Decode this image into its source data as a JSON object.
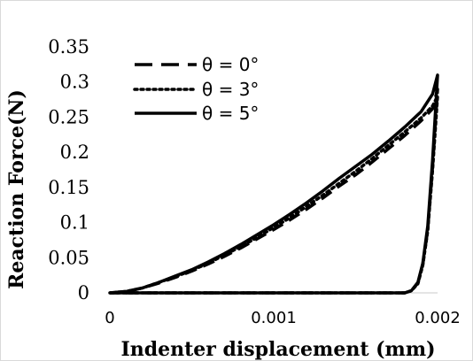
{
  "chart_data": {
    "type": "line",
    "title": "",
    "xlabel": "Indenter displacement (mm)",
    "ylabel": "Reaction Force(N)",
    "xlim": [
      0,
      0.002
    ],
    "ylim": [
      0,
      0.35
    ],
    "x_ticks": [
      "0",
      "0.001",
      "0.002"
    ],
    "x_tick_values": [
      0,
      0.001,
      0.002
    ],
    "y_ticks": [
      "0",
      "0.05",
      "0.1",
      "0.15",
      "0.2",
      "0.25",
      "0.3",
      "0.35"
    ],
    "y_tick_values": [
      0,
      0.05,
      0.1,
      0.15,
      0.2,
      0.25,
      0.3,
      0.35
    ],
    "grid": false,
    "legend_position": "top-left",
    "series": [
      {
        "name": "θ = 0°",
        "style": "dashed",
        "color": "#000000",
        "loading": [
          [
            0,
            0
          ],
          [
            0.0001,
            0.002
          ],
          [
            0.0002,
            0.007
          ],
          [
            0.0003,
            0.014
          ],
          [
            0.0004,
            0.022
          ],
          [
            0.0005,
            0.031
          ],
          [
            0.0006,
            0.041
          ],
          [
            0.0007,
            0.052
          ],
          [
            0.0008,
            0.064
          ],
          [
            0.0009,
            0.077
          ],
          [
            0.001,
            0.09
          ],
          [
            0.0011,
            0.104
          ],
          [
            0.0012,
            0.119
          ],
          [
            0.0013,
            0.135
          ],
          [
            0.0014,
            0.152
          ],
          [
            0.0015,
            0.168
          ],
          [
            0.0016,
            0.186
          ],
          [
            0.0017,
            0.205
          ],
          [
            0.0018,
            0.224
          ],
          [
            0.0019,
            0.245
          ],
          [
            0.00197,
            0.262
          ],
          [
            0.002,
            0.29
          ]
        ],
        "unloading": [
          [
            0.002,
            0.29
          ],
          [
            0.00197,
            0.18
          ],
          [
            0.00194,
            0.09
          ],
          [
            0.00191,
            0.04
          ],
          [
            0.00188,
            0.014
          ],
          [
            0.00184,
            0.003
          ],
          [
            0.0018,
            0
          ],
          [
            0.0008,
            0
          ],
          [
            0,
            0
          ]
        ]
      },
      {
        "name": "θ = 3°",
        "style": "dotted",
        "color": "#000000",
        "loading": [
          [
            0,
            0
          ],
          [
            0.0001,
            0.002
          ],
          [
            0.0002,
            0.007
          ],
          [
            0.0003,
            0.015
          ],
          [
            0.0004,
            0.023
          ],
          [
            0.0005,
            0.032
          ],
          [
            0.0006,
            0.042
          ],
          [
            0.0007,
            0.054
          ],
          [
            0.0008,
            0.066
          ],
          [
            0.0009,
            0.079
          ],
          [
            0.001,
            0.093
          ],
          [
            0.0011,
            0.107
          ],
          [
            0.0012,
            0.123
          ],
          [
            0.0013,
            0.139
          ],
          [
            0.0014,
            0.156
          ],
          [
            0.0015,
            0.173
          ],
          [
            0.0016,
            0.191
          ],
          [
            0.0017,
            0.21
          ],
          [
            0.0018,
            0.229
          ],
          [
            0.0019,
            0.249
          ],
          [
            0.00197,
            0.266
          ],
          [
            0.002,
            0.28
          ]
        ],
        "unloading": [
          [
            0.002,
            0.28
          ],
          [
            0.00197,
            0.175
          ],
          [
            0.00194,
            0.088
          ],
          [
            0.00191,
            0.039
          ],
          [
            0.00188,
            0.013
          ],
          [
            0.00184,
            0.003
          ],
          [
            0.0018,
            0
          ],
          [
            0.0008,
            0
          ],
          [
            0,
            0
          ]
        ]
      },
      {
        "name": "θ = 5°",
        "style": "solid",
        "color": "#000000",
        "loading": [
          [
            0,
            0
          ],
          [
            0.0001,
            0.002
          ],
          [
            0.0002,
            0.007
          ],
          [
            0.0003,
            0.015
          ],
          [
            0.0004,
            0.024
          ],
          [
            0.0005,
            0.033
          ],
          [
            0.0006,
            0.044
          ],
          [
            0.0007,
            0.056
          ],
          [
            0.0008,
            0.069
          ],
          [
            0.0009,
            0.083
          ],
          [
            0.001,
            0.097
          ],
          [
            0.0011,
            0.112
          ],
          [
            0.0012,
            0.128
          ],
          [
            0.0013,
            0.145
          ],
          [
            0.0014,
            0.163
          ],
          [
            0.0015,
            0.18
          ],
          [
            0.0016,
            0.197
          ],
          [
            0.0017,
            0.216
          ],
          [
            0.0018,
            0.236
          ],
          [
            0.0019,
            0.258
          ],
          [
            0.00197,
            0.283
          ],
          [
            0.002,
            0.31
          ]
        ],
        "unloading": [
          [
            0.002,
            0.31
          ],
          [
            0.00197,
            0.19
          ],
          [
            0.00194,
            0.095
          ],
          [
            0.00191,
            0.042
          ],
          [
            0.00188,
            0.015
          ],
          [
            0.00184,
            0.003
          ],
          [
            0.0018,
            0
          ],
          [
            0.0008,
            0
          ],
          [
            0,
            0
          ]
        ]
      }
    ]
  }
}
